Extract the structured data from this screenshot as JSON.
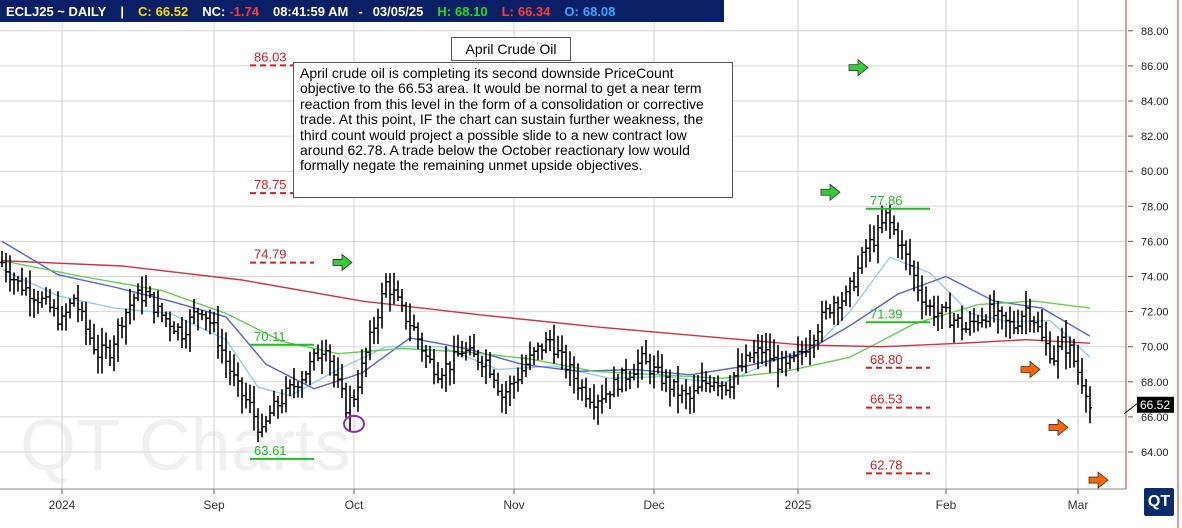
{
  "quote": {
    "symbol": "ECLJ25 ~ DAILY",
    "sep": "|",
    "close_label": "C:",
    "close": "66.52",
    "nc_label": "NC:",
    "nc": "-1.74",
    "time": "08:41:59 AM",
    "dash": "-",
    "date": "03/05/25",
    "high_label": "H:",
    "high": "68.10",
    "low_label": "L:",
    "low": "66.34",
    "open_label": "O:",
    "open": "68.08"
  },
  "note": {
    "title": "April Crude Oil",
    "body": "April crude oil is completing its second downside PriceCount objective to the 66.53 area.  It would be normal to get a near term reaction from this level in the form of a consolidation or corrective trade.  At this point, IF the chart can sustain further weakness, the third count would project a possible slide to a new contract low around 62.78.  A trade below the October reactionary low would formally negate the remaining unmet upside objectives."
  },
  "watermark": "QT Charts",
  "logo": "QT",
  "colors": {
    "quote_bg": "#0a1f66",
    "up_objective": "#22bb22",
    "down_objective": "#cc2222",
    "bars": "#000000",
    "ma_fast": "#99ccee",
    "ma_mid": "#5566cc",
    "ma_green": "#66cc55",
    "ma_red": "#cc3344",
    "arrow_green": "#33cc33",
    "arrow_orange": "#ff6600",
    "circle": "#8833aa"
  },
  "chart_data": {
    "type": "candlestick-ohlc",
    "title": "April Crude Oil",
    "ylim": [
      62.5,
      90.0
    ],
    "y_ticks": [
      "64.00",
      "66.00",
      "68.00",
      "70.00",
      "72.00",
      "74.00",
      "76.00",
      "78.00",
      "80.00",
      "82.00",
      "84.00",
      "86.00",
      "88.00"
    ],
    "x_ticks": [
      "2024",
      "Sep",
      "Oct",
      "Nov",
      "Dec",
      "2025",
      "Feb",
      "Mar"
    ],
    "last_price": "66.52",
    "price_path": [
      [
        0,
        74.8
      ],
      [
        4,
        73.6
      ],
      [
        8,
        73.0
      ],
      [
        12,
        72.2
      ],
      [
        15,
        71.4
      ],
      [
        18,
        72.8
      ],
      [
        21,
        71.0
      ],
      [
        24,
        69.6
      ],
      [
        27,
        69.8
      ],
      [
        30,
        71.6
      ],
      [
        33,
        72.8
      ],
      [
        36,
        73.0
      ],
      [
        39,
        72.0
      ],
      [
        42,
        71.4
      ],
      [
        45,
        70.8
      ],
      [
        48,
        71.8
      ],
      [
        50,
        72.2
      ],
      [
        53,
        71.0
      ],
      [
        56,
        69.2
      ],
      [
        59,
        67.6
      ],
      [
        62,
        66.6
      ],
      [
        65,
        65.0
      ],
      [
        67,
        66.2
      ],
      [
        70,
        67.0
      ],
      [
        73,
        67.8
      ],
      [
        76,
        68.6
      ],
      [
        79,
        69.6
      ],
      [
        81,
        70.2
      ],
      [
        83,
        68.4
      ],
      [
        86,
        66.6
      ],
      [
        88,
        67.2
      ],
      [
        91,
        69.6
      ],
      [
        94,
        72.0
      ],
      [
        96,
        73.6
      ],
      [
        98,
        73.0
      ],
      [
        100,
        72.0
      ],
      [
        103,
        71.0
      ],
      [
        106,
        69.4
      ],
      [
        109,
        68.6
      ],
      [
        112,
        69.0
      ],
      [
        115,
        69.8
      ],
      [
        118,
        69.4
      ],
      [
        121,
        69.2
      ],
      [
        123,
        68.4
      ],
      [
        125,
        67.2
      ],
      [
        128,
        68.0
      ],
      [
        131,
        69.0
      ],
      [
        134,
        69.8
      ],
      [
        137,
        70.4
      ],
      [
        139,
        69.6
      ],
      [
        142,
        68.6
      ],
      [
        145,
        67.6
      ],
      [
        148,
        67.0
      ],
      [
        151,
        67.4
      ],
      [
        154,
        68.0
      ],
      [
        157,
        68.6
      ],
      [
        160,
        69.2
      ],
      [
        163,
        68.6
      ],
      [
        166,
        68.0
      ],
      [
        169,
        67.4
      ],
      [
        172,
        67.0
      ],
      [
        175,
        67.8
      ],
      [
        178,
        68.2
      ],
      [
        181,
        67.8
      ],
      [
        184,
        68.6
      ],
      [
        187,
        69.4
      ],
      [
        190,
        69.8
      ],
      [
        193,
        69.2
      ],
      [
        196,
        68.8
      ],
      [
        199,
        69.4
      ],
      [
        202,
        70.4
      ],
      [
        205,
        71.6
      ],
      [
        208,
        72.6
      ],
      [
        211,
        72.8
      ],
      [
        213,
        73.8
      ],
      [
        216,
        75.6
      ],
      [
        219,
        76.4
      ],
      [
        221,
        77.4
      ],
      [
        223,
        76.6
      ],
      [
        225,
        75.6
      ],
      [
        227,
        74.6
      ],
      [
        229,
        73.4
      ],
      [
        231,
        72.4
      ],
      [
        233,
        72.0
      ],
      [
        236,
        71.8
      ],
      [
        239,
        71.4
      ],
      [
        241,
        71.0
      ],
      [
        244,
        71.6
      ],
      [
        247,
        72.0
      ],
      [
        250,
        71.4
      ],
      [
        253,
        71.2
      ],
      [
        256,
        72.2
      ],
      [
        258,
        71.6
      ],
      [
        260,
        70.4
      ],
      [
        263,
        69.4
      ],
      [
        265,
        70.2
      ],
      [
        267,
        69.8
      ],
      [
        269,
        68.6
      ],
      [
        271,
        67.6
      ],
      [
        272,
        66.52
      ]
    ],
    "moving_averages": [
      {
        "color": "#99ccee",
        "points": [
          [
            0,
            74.4
          ],
          [
            14,
            72.9
          ],
          [
            28,
            72.2
          ],
          [
            42,
            71.9
          ],
          [
            56,
            70.4
          ],
          [
            64,
            67.7
          ],
          [
            72,
            67.2
          ],
          [
            84,
            68.7
          ],
          [
            96,
            70.0
          ],
          [
            110,
            70.0
          ],
          [
            124,
            68.7
          ],
          [
            138,
            68.9
          ],
          [
            152,
            68.2
          ],
          [
            166,
            68.3
          ],
          [
            180,
            67.9
          ],
          [
            192,
            69.1
          ],
          [
            204,
            70.2
          ],
          [
            212,
            72.0
          ],
          [
            222,
            75.1
          ],
          [
            232,
            74.2
          ],
          [
            242,
            71.9
          ],
          [
            252,
            71.4
          ],
          [
            262,
            71.5
          ],
          [
            272,
            69.4
          ]
        ]
      },
      {
        "color": "#5566cc",
        "points": [
          [
            0,
            76.0
          ],
          [
            14,
            74.1
          ],
          [
            28,
            73.4
          ],
          [
            42,
            72.6
          ],
          [
            56,
            71.7
          ],
          [
            66,
            69.0
          ],
          [
            78,
            67.6
          ],
          [
            90,
            68.5
          ],
          [
            102,
            70.5
          ],
          [
            116,
            69.9
          ],
          [
            130,
            69.0
          ],
          [
            144,
            68.6
          ],
          [
            158,
            68.7
          ],
          [
            172,
            68.4
          ],
          [
            186,
            68.9
          ],
          [
            200,
            69.6
          ],
          [
            212,
            71.2
          ],
          [
            224,
            73.0
          ],
          [
            236,
            74.0
          ],
          [
            248,
            72.6
          ],
          [
            260,
            72.2
          ],
          [
            272,
            70.6
          ]
        ]
      },
      {
        "color": "#66cc55",
        "points": [
          [
            0,
            74.9
          ],
          [
            20,
            74.0
          ],
          [
            40,
            73.2
          ],
          [
            56,
            71.9
          ],
          [
            70,
            70.3
          ],
          [
            84,
            69.6
          ],
          [
            100,
            69.9
          ],
          [
            116,
            69.7
          ],
          [
            132,
            69.3
          ],
          [
            148,
            68.6
          ],
          [
            164,
            68.4
          ],
          [
            180,
            68.2
          ],
          [
            196,
            68.6
          ],
          [
            212,
            69.4
          ],
          [
            228,
            71.3
          ],
          [
            244,
            72.4
          ],
          [
            258,
            72.6
          ],
          [
            272,
            72.2
          ]
        ]
      },
      {
        "color": "#cc3344",
        "points": [
          [
            0,
            74.9
          ],
          [
            30,
            74.6
          ],
          [
            60,
            73.8
          ],
          [
            90,
            72.6
          ],
          [
            120,
            71.8
          ],
          [
            150,
            71.1
          ],
          [
            180,
            70.5
          ],
          [
            200,
            70.1
          ],
          [
            220,
            70.0
          ],
          [
            240,
            70.2
          ],
          [
            256,
            70.4
          ],
          [
            272,
            70.2
          ]
        ]
      }
    ],
    "objectives": [
      {
        "label": "86.03",
        "value": 86.03,
        "style": "down"
      },
      {
        "label": "78.75",
        "value": 78.75,
        "style": "down"
      },
      {
        "label": "74.79",
        "value": 74.79,
        "style": "down"
      },
      {
        "label": "70.11",
        "value": 70.11,
        "style": "up"
      },
      {
        "label": "63.61",
        "value": 63.61,
        "style": "up"
      },
      {
        "label": "77.86",
        "value": 77.86,
        "style": "up"
      },
      {
        "label": "71.39",
        "value": 71.39,
        "style": "up"
      },
      {
        "label": "68.80",
        "value": 68.8,
        "style": "down"
      },
      {
        "label": "66.53",
        "value": 66.53,
        "style": "down"
      },
      {
        "label": "62.78",
        "value": 62.78,
        "style": "down"
      }
    ],
    "signals": [
      {
        "kind": "green-arrow",
        "bar": 85,
        "value": 74.8
      },
      {
        "kind": "green-arrow",
        "bar": 207,
        "value": 78.8
      },
      {
        "kind": "green-arrow",
        "bar": 214,
        "value": 85.9
      },
      {
        "kind": "orange-arrow",
        "bar": 257,
        "value": 68.7
      },
      {
        "kind": "orange-arrow",
        "bar": 264,
        "value": 65.4
      },
      {
        "kind": "orange-arrow",
        "bar": 274,
        "value": 62.4
      },
      {
        "kind": "circle",
        "bar": 88,
        "value": 65.6
      }
    ]
  }
}
